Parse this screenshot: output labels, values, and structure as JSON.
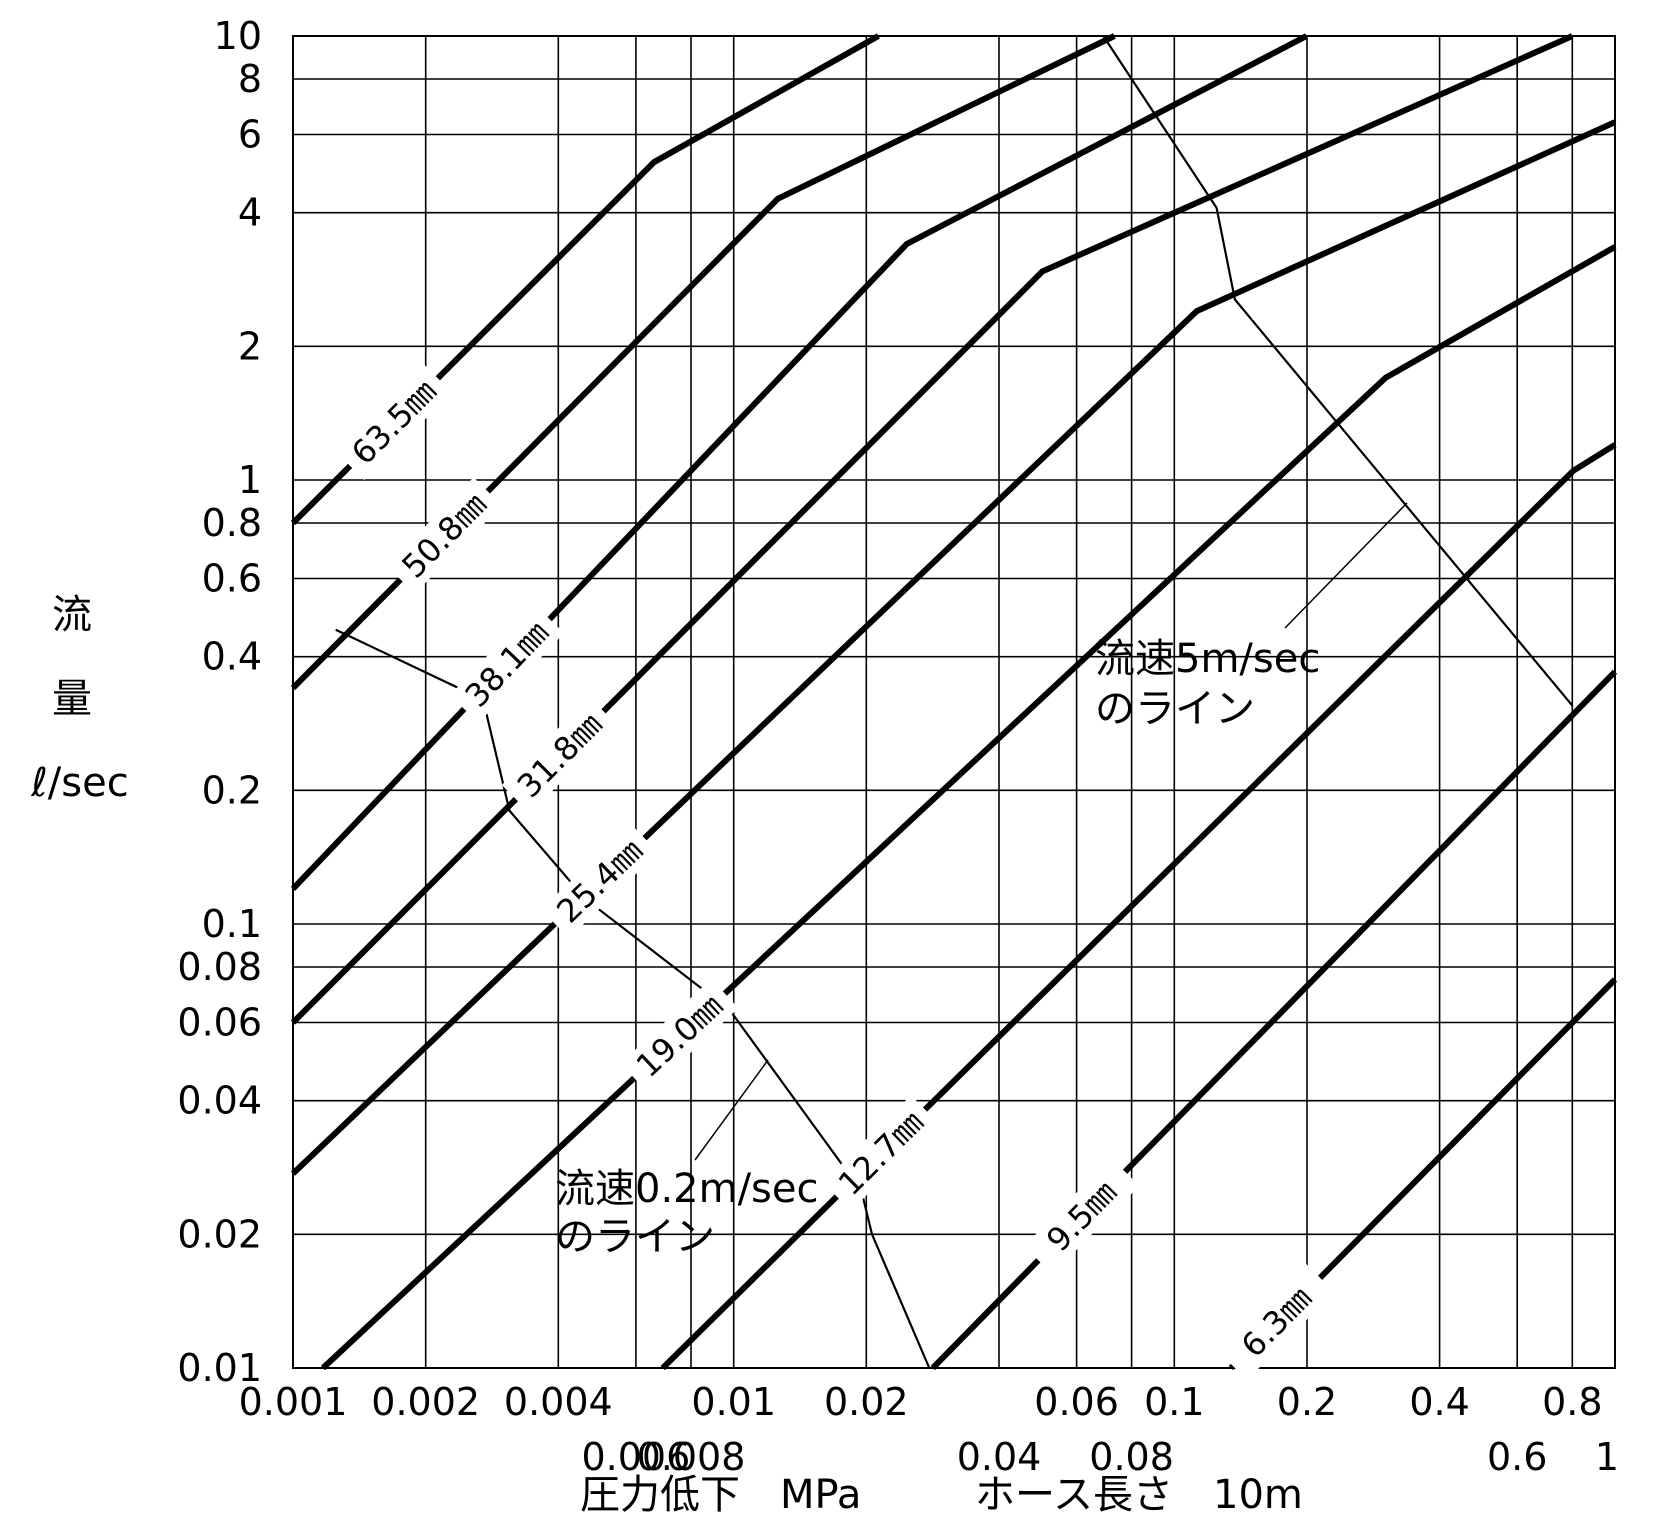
{
  "chart_data": {
    "type": "line",
    "scale": "log-log",
    "xlabel_parts": [
      "圧力低下　MPa",
      "ホース長さ　10m"
    ],
    "ylabel_parts": [
      "流",
      "量",
      "ℓ/sec"
    ],
    "xlim": [
      0.001,
      1
    ],
    "ylim": [
      0.01,
      10
    ],
    "grid": true,
    "x_ticks_row1": [
      "0.001",
      "0.002",
      "0.004",
      "0.01",
      "0.02",
      "0.06",
      "0.1",
      "0.2",
      "0.4",
      "0.8"
    ],
    "x_ticks_row1_values": [
      0.001,
      0.002,
      0.004,
      0.01,
      0.02,
      0.06,
      0.1,
      0.2,
      0.4,
      0.8
    ],
    "x_ticks_row2": [
      "0.006",
      "0.008",
      "0.04",
      "0.08",
      "0.6",
      "1"
    ],
    "x_ticks_row2_values": [
      0.006,
      0.008,
      0.04,
      0.08,
      0.6,
      1
    ],
    "y_ticks": [
      "0.01",
      "0.02",
      "0.04",
      "0.06",
      "0.08",
      "0.1",
      "0.2",
      "0.4",
      "0.6",
      "0.8",
      "1",
      "2",
      "4",
      "6",
      "8",
      "10"
    ],
    "y_ticks_values": [
      0.01,
      0.02,
      0.04,
      0.06,
      0.08,
      0.1,
      0.2,
      0.4,
      0.6,
      0.8,
      1,
      2,
      4,
      6,
      8,
      10
    ],
    "x_grid": [
      0.001,
      0.002,
      0.004,
      0.006,
      0.008,
      0.01,
      0.02,
      0.04,
      0.06,
      0.08,
      0.1,
      0.2,
      0.4,
      0.6,
      0.8,
      1
    ],
    "y_grid": [
      0.01,
      0.02,
      0.04,
      0.06,
      0.08,
      0.1,
      0.2,
      0.4,
      0.6,
      0.8,
      1,
      2,
      4,
      6,
      8,
      10
    ],
    "series": [
      {
        "name": "63.5㎜",
        "points": [
          [
            0.001,
            0.8
          ],
          [
            0.0066,
            5.2
          ],
          [
            0.0213,
            10
          ]
        ]
      },
      {
        "name": "50.8㎜",
        "points": [
          [
            0.001,
            0.34
          ],
          [
            0.0126,
            4.3
          ],
          [
            0.0731,
            10
          ]
        ]
      },
      {
        "name": "38.1㎜",
        "points": [
          [
            0.001,
            0.12
          ],
          [
            0.0247,
            3.4
          ],
          [
            0.1995,
            10
          ]
        ]
      },
      {
        "name": "31.8㎜",
        "points": [
          [
            0.001,
            0.06
          ],
          [
            0.0502,
            2.95
          ],
          [
            0.8,
            10
          ]
        ]
      },
      {
        "name": "25.4㎜",
        "points": [
          [
            0.001,
            0.0274
          ],
          [
            0.1124,
            2.4
          ],
          [
            1,
            6.4
          ]
        ]
      },
      {
        "name": "19.0㎜",
        "points": [
          [
            0.00117,
            0.01
          ],
          [
            0.3018,
            1.7
          ],
          [
            1,
            3.35
          ]
        ]
      },
      {
        "name": "12.7㎜",
        "points": [
          [
            0.0069,
            0.01
          ],
          [
            0.805,
            1.05
          ],
          [
            1,
            1.2
          ]
        ]
      },
      {
        "name": "9.5㎜",
        "points": [
          [
            0.0283,
            0.01
          ],
          [
            1,
            0.37
          ]
        ]
      },
      {
        "name": "6.3㎜",
        "points": [
          [
            0.1344,
            0.01
          ],
          [
            1,
            0.075
          ]
        ]
      }
    ],
    "velocity_lines": [
      {
        "name": "流速0.2m/sec",
        "points": [
          [
            0.00125,
            0.46
          ],
          [
            0.0027,
            0.32
          ],
          [
            0.0031,
            0.18
          ],
          [
            0.0046,
            0.114
          ],
          [
            0.0098,
            0.064
          ],
          [
            0.0195,
            0.025
          ],
          [
            0.0206,
            0.02
          ],
          [
            0.0278,
            0.01
          ]
        ]
      },
      {
        "name": "流速5m/sec",
        "points": [
          [
            0.069,
            10
          ],
          [
            0.1247,
            4.1
          ],
          [
            0.1372,
            2.55
          ],
          [
            0.801,
            0.31
          ]
        ]
      }
    ],
    "annotations": [
      {
        "line1": "流速5m/sec",
        "line2": "のライン"
      },
      {
        "line1": "流速0.2m/sec",
        "line2": "のライン"
      }
    ]
  }
}
